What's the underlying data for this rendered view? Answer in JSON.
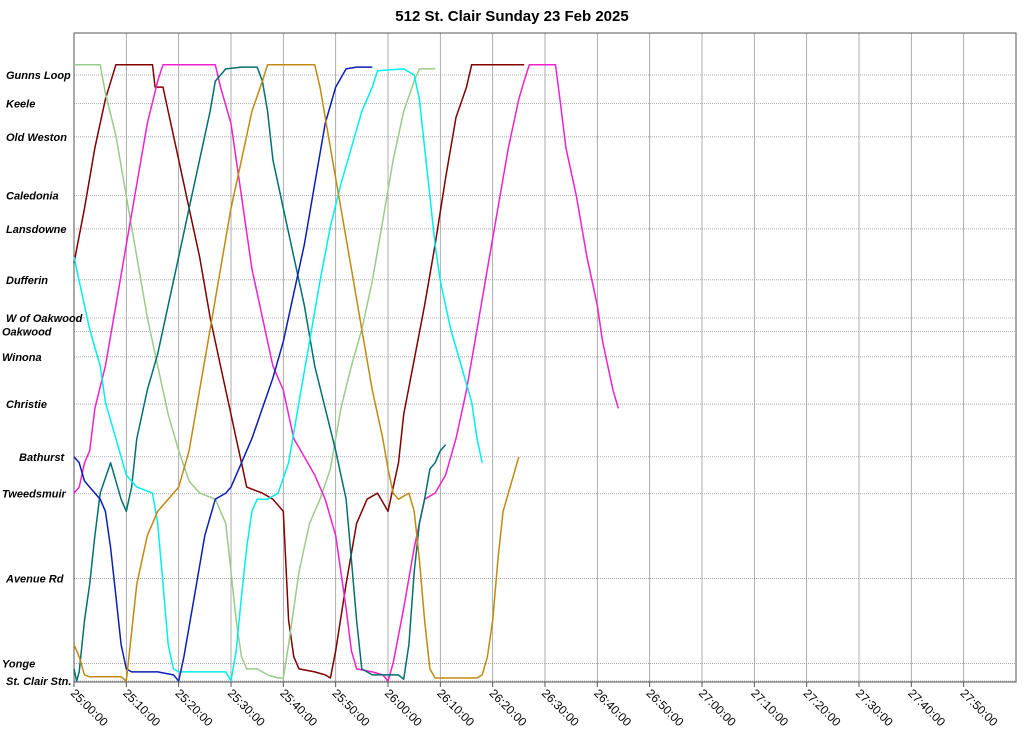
{
  "chart_data": {
    "type": "line",
    "title": "512 St. Clair Sunday 23 Feb 2025",
    "xlabel": "",
    "ylabel": "",
    "x_ticks": [
      "25:00:00",
      "25:10:00",
      "25:20:00",
      "25:30:00",
      "25:40:00",
      "25:50:00",
      "26:00:00",
      "26:10:00",
      "26:20:00",
      "26:30:00",
      "26:40:00",
      "26:50:00",
      "27:00:00",
      "27:10:00",
      "27:20:00",
      "27:30:00",
      "27:40:00",
      "27:50:00"
    ],
    "xlim_minutes": [
      0,
      180
    ],
    "x_tick_minutes": [
      0,
      10,
      20,
      30,
      40,
      50,
      60,
      70,
      80,
      90,
      100,
      110,
      120,
      130,
      140,
      150,
      160,
      170
    ],
    "stops": [
      {
        "name": "Gunns Loop",
        "pos": 100
      },
      {
        "name": "Keele",
        "pos": 95.3
      },
      {
        "name": "Old Weston",
        "pos": 89.8
      },
      {
        "name": "Caledonia",
        "pos": 80.1
      },
      {
        "name": "Lansdowne",
        "pos": 74.6
      },
      {
        "name": "Dufferin",
        "pos": 66.2
      },
      {
        "name": "W of Oakwood",
        "pos": 59.9
      },
      {
        "name": "Oakwood",
        "pos": 57.7
      },
      {
        "name": "Winona",
        "pos": 53.5
      },
      {
        "name": "Christie",
        "pos": 45.7
      },
      {
        "name": "Bathurst",
        "pos": 37.0
      },
      {
        "name": "Tweedsmuir",
        "pos": 30.9
      },
      {
        "name": "Avenue Rd",
        "pos": 16.9
      },
      {
        "name": "Yonge",
        "pos": 2.9
      },
      {
        "name": "St. Clair Stn.",
        "pos": 0
      }
    ],
    "ylim": [
      0,
      100
    ],
    "grid": true,
    "series": [
      {
        "color": "#800000",
        "points": [
          [
            0,
            69
          ],
          [
            2,
            78
          ],
          [
            4,
            88
          ],
          [
            6,
            96
          ],
          [
            8,
            101.7
          ],
          [
            15,
            101.7
          ],
          [
            15.5,
            98
          ],
          [
            17,
            98
          ],
          [
            18,
            94
          ],
          [
            20,
            86
          ],
          [
            22,
            78
          ],
          [
            24,
            70
          ],
          [
            26,
            60
          ],
          [
            28,
            52
          ],
          [
            30,
            44
          ],
          [
            31,
            40
          ],
          [
            32,
            36
          ],
          [
            33,
            32
          ],
          [
            36,
            31
          ],
          [
            38,
            30
          ],
          [
            40,
            28
          ],
          [
            41,
            10
          ],
          [
            42,
            4
          ],
          [
            43,
            2
          ],
          [
            46,
            1.5
          ],
          [
            48,
            1
          ],
          [
            49,
            0.5
          ],
          [
            50,
            5
          ],
          [
            52,
            16
          ],
          [
            54,
            26
          ],
          [
            56,
            30
          ],
          [
            58,
            31
          ],
          [
            60,
            28
          ],
          [
            62,
            36
          ],
          [
            63,
            44
          ],
          [
            65,
            53
          ],
          [
            67,
            62
          ],
          [
            69,
            72
          ],
          [
            71,
            83
          ],
          [
            73,
            93
          ],
          [
            75,
            98
          ],
          [
            76,
            101.7
          ],
          [
            86,
            101.7
          ]
        ]
      },
      {
        "color": "#99cc88",
        "points": [
          [
            0,
            101.7
          ],
          [
            5,
            101.7
          ],
          [
            6,
            97
          ],
          [
            8,
            90
          ],
          [
            10,
            80
          ],
          [
            12,
            70
          ],
          [
            14,
            60
          ],
          [
            16,
            52
          ],
          [
            18,
            44
          ],
          [
            20,
            38
          ],
          [
            22,
            33
          ],
          [
            24,
            31
          ],
          [
            27,
            30
          ],
          [
            29,
            26
          ],
          [
            31,
            10
          ],
          [
            32,
            4
          ],
          [
            33,
            2
          ],
          [
            35,
            2
          ],
          [
            37,
            1
          ],
          [
            39,
            0.5
          ],
          [
            40,
            0.5
          ],
          [
            41,
            6
          ],
          [
            43,
            18
          ],
          [
            45,
            26
          ],
          [
            47,
            30
          ],
          [
            49,
            35
          ],
          [
            51,
            45
          ],
          [
            53,
            52
          ],
          [
            55,
            58
          ],
          [
            57,
            66
          ],
          [
            59,
            76
          ],
          [
            61,
            86
          ],
          [
            63,
            94
          ],
          [
            65,
            99
          ],
          [
            66,
            101
          ],
          [
            69,
            101
          ]
        ]
      },
      {
        "color": "#ee22cc",
        "points": [
          [
            0,
            31
          ],
          [
            1,
            32
          ],
          [
            2,
            36
          ],
          [
            3,
            38
          ],
          [
            4,
            45
          ],
          [
            6,
            52
          ],
          [
            8,
            62
          ],
          [
            10,
            72
          ],
          [
            12,
            82
          ],
          [
            14,
            92
          ],
          [
            16,
            99
          ],
          [
            17,
            101.7
          ],
          [
            27,
            101.7
          ],
          [
            28,
            98
          ],
          [
            30,
            92
          ],
          [
            32,
            80
          ],
          [
            34,
            68
          ],
          [
            36,
            60
          ],
          [
            37,
            56
          ],
          [
            38,
            52
          ],
          [
            40,
            48
          ],
          [
            42,
            40
          ],
          [
            44,
            37
          ],
          [
            46,
            34
          ],
          [
            48,
            30
          ],
          [
            50,
            24
          ],
          [
            52,
            12
          ],
          [
            53,
            5
          ],
          [
            54,
            2
          ],
          [
            57,
            1.5
          ],
          [
            59,
            1
          ],
          [
            60,
            0
          ],
          [
            61,
            3
          ],
          [
            63,
            12
          ],
          [
            65,
            22
          ],
          [
            67,
            30
          ],
          [
            69,
            31
          ],
          [
            71,
            34
          ],
          [
            73,
            40
          ],
          [
            75,
            48
          ],
          [
            77,
            58
          ],
          [
            79,
            68
          ],
          [
            81,
            78
          ],
          [
            83,
            88
          ],
          [
            85,
            96
          ],
          [
            86,
            99
          ],
          [
            87,
            101.7
          ],
          [
            92,
            101.7
          ],
          [
            93,
            95
          ],
          [
            94,
            88
          ],
          [
            96,
            80
          ],
          [
            98,
            70
          ],
          [
            100,
            62
          ],
          [
            101,
            56
          ],
          [
            102,
            52
          ],
          [
            103,
            48
          ],
          [
            104,
            45
          ]
        ]
      },
      {
        "color": "#007070",
        "points": [
          [
            0,
            2
          ],
          [
            0.5,
            0
          ],
          [
            1,
            1.5
          ],
          [
            2,
            10
          ],
          [
            3,
            16
          ],
          [
            4,
            24
          ],
          [
            5,
            31
          ],
          [
            7,
            36
          ],
          [
            9,
            30
          ],
          [
            10,
            28
          ],
          [
            11,
            32
          ],
          [
            12,
            40
          ],
          [
            14,
            48
          ],
          [
            16,
            54
          ],
          [
            18,
            62
          ],
          [
            20,
            70
          ],
          [
            22,
            78
          ],
          [
            24,
            86
          ],
          [
            26,
            94
          ],
          [
            27,
            99
          ],
          [
            29,
            101
          ],
          [
            32,
            101.3
          ],
          [
            35,
            101.3
          ],
          [
            36,
            99
          ],
          [
            37,
            94
          ],
          [
            38,
            86
          ],
          [
            40,
            78
          ],
          [
            42,
            70
          ],
          [
            44,
            62
          ],
          [
            46,
            52
          ],
          [
            48,
            45
          ],
          [
            50,
            38
          ],
          [
            51,
            34
          ],
          [
            52,
            30
          ],
          [
            53,
            20
          ],
          [
            54,
            10
          ],
          [
            55,
            2
          ],
          [
            57,
            1
          ],
          [
            62,
            1
          ],
          [
            63,
            0.3
          ],
          [
            64,
            6
          ],
          [
            65,
            18
          ],
          [
            66,
            26
          ],
          [
            67,
            30
          ],
          [
            68,
            35
          ],
          [
            69,
            36
          ],
          [
            70,
            38
          ],
          [
            71,
            39
          ]
        ]
      },
      {
        "color": "#00eeee",
        "points": [
          [
            0,
            70
          ],
          [
            1,
            66
          ],
          [
            3,
            58
          ],
          [
            5,
            52
          ],
          [
            6,
            46
          ],
          [
            8,
            40
          ],
          [
            10,
            34
          ],
          [
            12,
            32
          ],
          [
            15,
            31
          ],
          [
            16,
            26
          ],
          [
            17,
            16
          ],
          [
            18,
            6
          ],
          [
            19,
            2
          ],
          [
            20,
            1.5
          ],
          [
            25,
            1.5
          ],
          [
            29,
            1.5
          ],
          [
            30,
            0
          ],
          [
            31,
            5
          ],
          [
            32,
            14
          ],
          [
            33,
            22
          ],
          [
            34,
            28
          ],
          [
            35,
            30
          ],
          [
            37,
            30
          ],
          [
            39,
            31
          ],
          [
            41,
            36
          ],
          [
            43,
            46
          ],
          [
            45,
            56
          ],
          [
            47,
            66
          ],
          [
            49,
            75
          ],
          [
            51,
            82
          ],
          [
            53,
            88
          ],
          [
            55,
            94
          ],
          [
            57,
            98
          ],
          [
            58,
            100.7
          ],
          [
            63,
            101
          ],
          [
            65,
            100
          ],
          [
            66,
            96
          ],
          [
            67,
            88
          ],
          [
            68,
            80
          ],
          [
            69,
            72
          ],
          [
            70,
            66
          ],
          [
            72,
            58
          ],
          [
            74,
            52
          ],
          [
            76,
            46
          ],
          [
            77,
            40
          ],
          [
            78,
            36
          ]
        ]
      },
      {
        "color": "#0a1fb3",
        "points": [
          [
            0,
            37
          ],
          [
            1,
            36
          ],
          [
            2,
            33
          ],
          [
            3,
            32
          ],
          [
            5,
            30
          ],
          [
            6,
            28
          ],
          [
            7,
            22
          ],
          [
            8,
            14
          ],
          [
            9,
            6
          ],
          [
            10,
            2
          ],
          [
            11,
            1.5
          ],
          [
            16,
            1.5
          ],
          [
            19,
            1
          ],
          [
            20,
            0
          ],
          [
            21,
            4
          ],
          [
            23,
            14
          ],
          [
            25,
            24
          ],
          [
            27,
            30
          ],
          [
            29,
            31
          ],
          [
            30,
            32
          ],
          [
            32,
            36
          ],
          [
            34,
            40
          ],
          [
            36,
            45
          ],
          [
            38,
            50
          ],
          [
            40,
            56
          ],
          [
            42,
            64
          ],
          [
            44,
            72
          ],
          [
            46,
            82
          ],
          [
            48,
            92
          ],
          [
            50,
            98
          ],
          [
            52,
            101
          ],
          [
            54,
            101.3
          ],
          [
            57,
            101.3
          ]
        ]
      },
      {
        "color": "#c08a10",
        "points": [
          [
            0,
            6
          ],
          [
            1,
            4
          ],
          [
            2,
            1
          ],
          [
            3,
            0.7
          ],
          [
            6,
            0.7
          ],
          [
            9,
            0.7
          ],
          [
            10,
            0
          ],
          [
            11,
            8
          ],
          [
            12,
            16
          ],
          [
            14,
            24
          ],
          [
            16,
            28
          ],
          [
            18,
            30
          ],
          [
            20,
            32
          ],
          [
            22,
            38
          ],
          [
            24,
            48
          ],
          [
            26,
            58
          ],
          [
            28,
            68
          ],
          [
            30,
            78
          ],
          [
            32,
            86
          ],
          [
            34,
            94
          ],
          [
            36,
            99
          ],
          [
            37,
            101.7
          ],
          [
            46,
            101.7
          ],
          [
            47,
            98
          ],
          [
            49,
            88
          ],
          [
            51,
            78
          ],
          [
            53,
            68
          ],
          [
            55,
            58
          ],
          [
            57,
            48
          ],
          [
            59,
            40
          ],
          [
            60,
            35
          ],
          [
            61,
            31
          ],
          [
            62,
            30
          ],
          [
            64,
            31
          ],
          [
            65,
            28
          ],
          [
            66,
            20
          ],
          [
            67,
            10
          ],
          [
            68,
            2
          ],
          [
            69,
            0.5
          ],
          [
            73,
            0.5
          ],
          [
            77,
            0.5
          ],
          [
            78,
            1
          ],
          [
            79,
            4
          ],
          [
            80,
            10
          ],
          [
            81,
            20
          ],
          [
            82,
            28
          ],
          [
            83,
            31
          ],
          [
            84,
            34
          ],
          [
            85,
            37
          ]
        ]
      }
    ]
  }
}
